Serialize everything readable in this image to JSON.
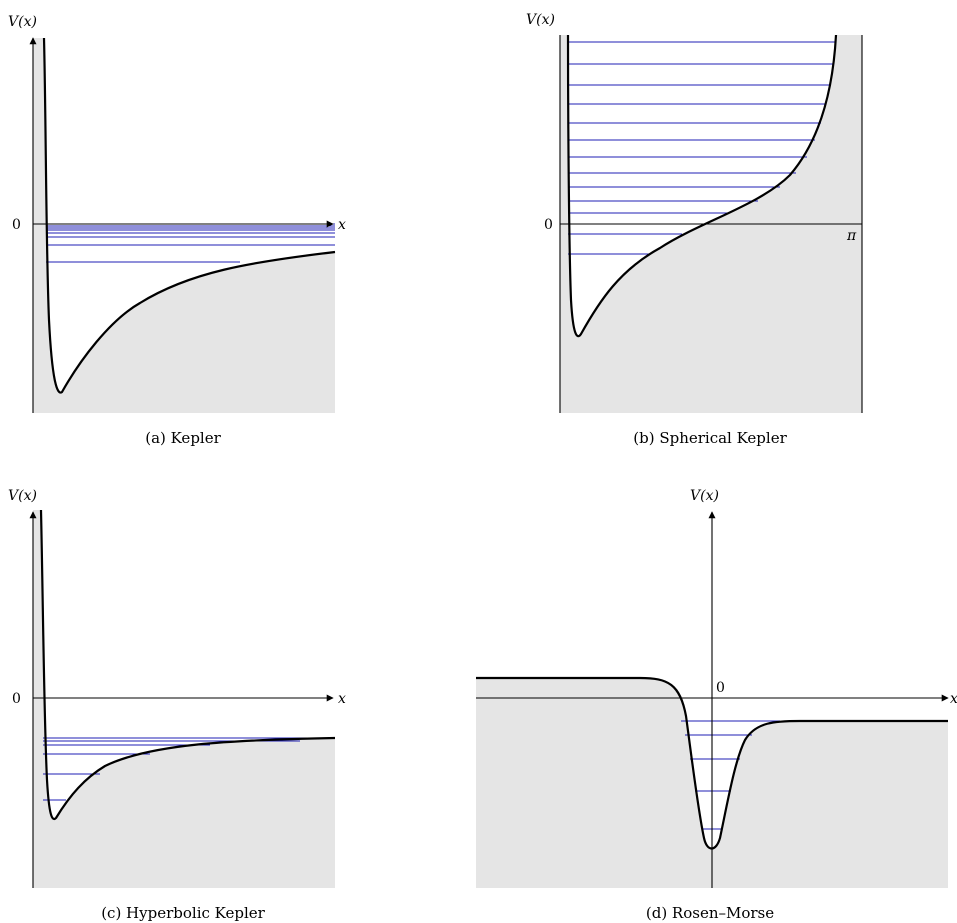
{
  "colors": {
    "forbidden_region": "#e5e5e5",
    "energy_levels": "#1f1fb4",
    "curve": "#000000"
  },
  "panels": [
    {
      "id": "a",
      "caption": "(a) Kepler",
      "y_axis_label": "V(x)",
      "x_axis_label": "x",
      "zero_label": "0",
      "x_end_label": ""
    },
    {
      "id": "b",
      "caption": "(b) Spherical Kepler",
      "y_axis_label": "V(x)",
      "x_axis_label": "",
      "zero_label": "0",
      "x_end_label": "π"
    },
    {
      "id": "c",
      "caption": "(c) Hyperbolic Kepler",
      "y_axis_label": "V(x)",
      "x_axis_label": "x",
      "zero_label": "0",
      "x_end_label": ""
    },
    {
      "id": "d",
      "caption": "(d) Rosen–Morse",
      "y_axis_label": "V(x)",
      "x_axis_label": "x",
      "zero_label": "0",
      "x_end_label": ""
    }
  ]
}
